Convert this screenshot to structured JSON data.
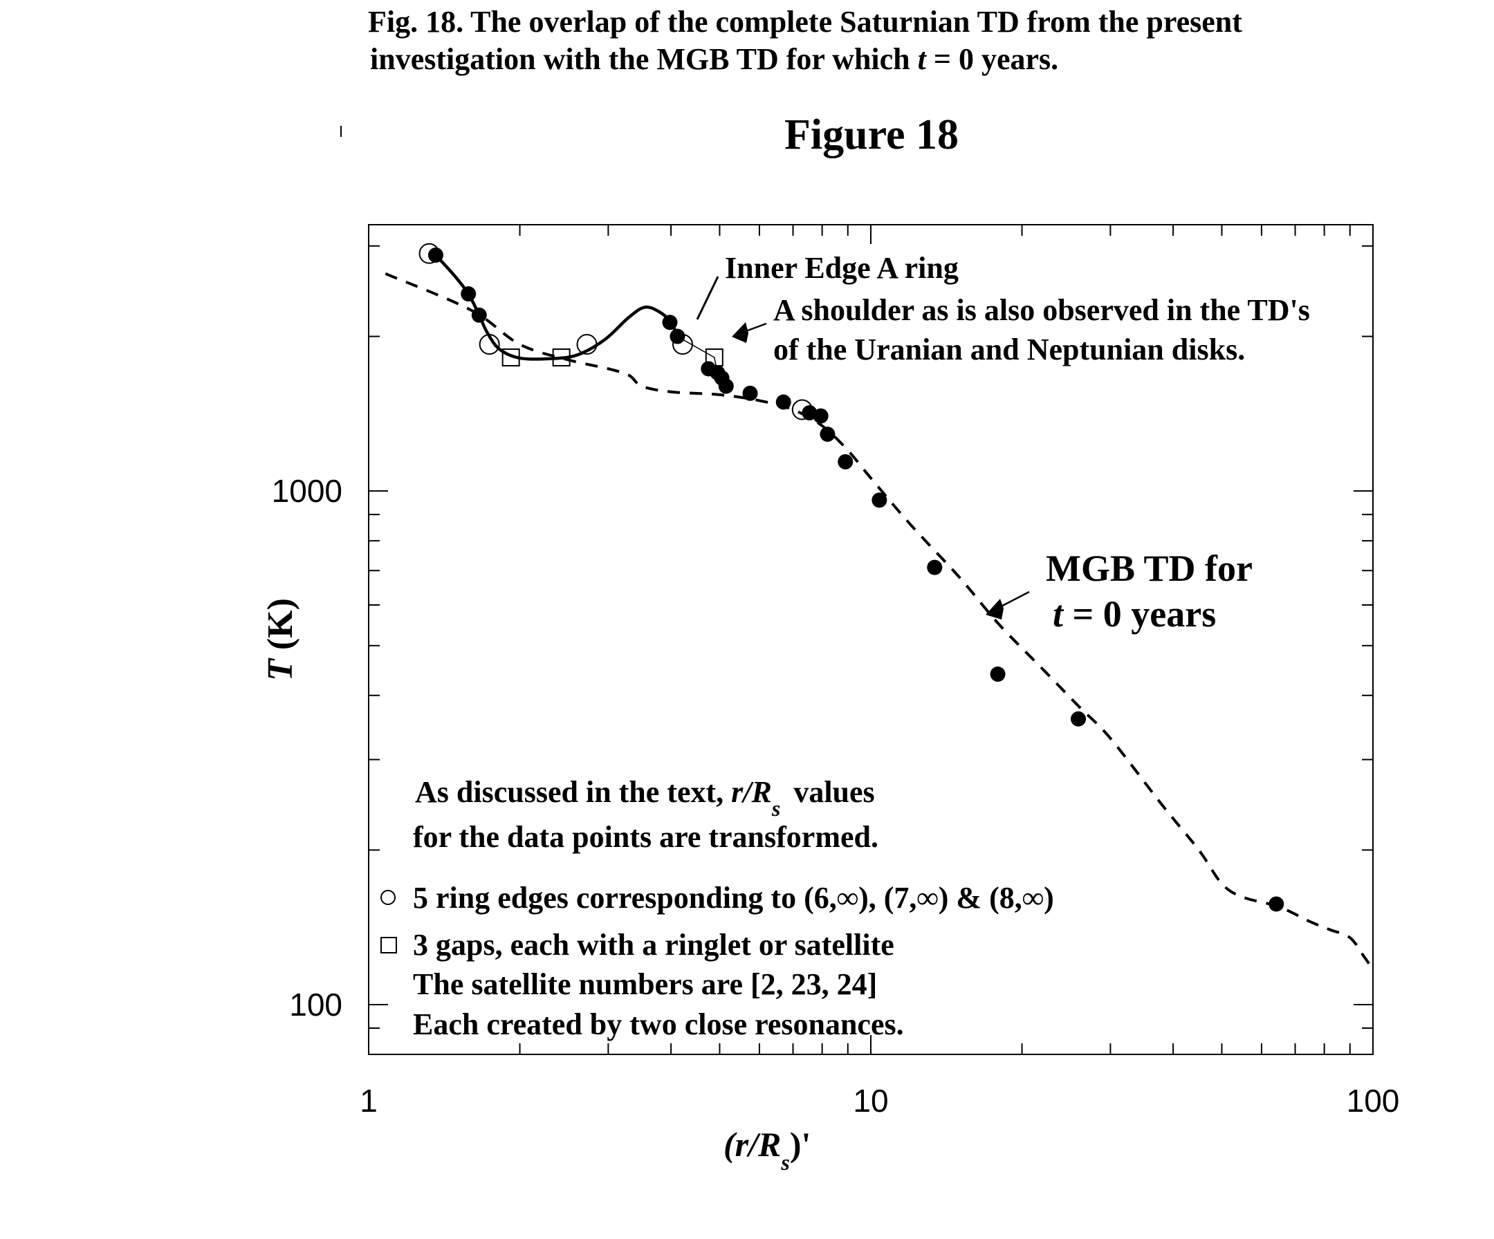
{
  "caption": {
    "label": "Fig. 18.",
    "line1_rest": "The overlap of the complete Saturnian TD from the present",
    "line2_pre": "investigation with the MGB TD for which ",
    "line2_var": "t",
    "line2_post": " = 0 years."
  },
  "chart_data": {
    "type": "scatter",
    "title": "Figure 18",
    "xlabel": {
      "main": "(r/R",
      "sub": "s",
      "tail": ")'"
    },
    "ylabel": {
      "var": "T",
      "unit": " (K)"
    },
    "x_scale": "log",
    "y_scale": "log",
    "xlim": [
      1,
      100
    ],
    "ylim": [
      80,
      3300
    ],
    "x_tick_labels": [
      {
        "value": 1,
        "label": "1"
      },
      {
        "value": 10,
        "label": "10"
      },
      {
        "value": 100,
        "label": "100"
      }
    ],
    "y_tick_labels": [
      {
        "value": 100,
        "label": "100"
      },
      {
        "value": 1000,
        "label": "1000"
      }
    ],
    "grid": false,
    "series": [
      {
        "type": "filled-circles",
        "x": [
          1.36,
          1.58,
          1.66,
          3.98,
          4.12,
          4.75,
          4.95,
          5.05,
          5.15,
          5.75,
          6.7,
          7.55,
          7.95,
          8.2,
          8.9,
          10.4,
          13.4,
          17.9,
          25.9,
          64.2
        ],
        "y": [
          2880,
          2420,
          2200,
          2130,
          2000,
          1730,
          1700,
          1660,
          1600,
          1550,
          1490,
          1420,
          1400,
          1290,
          1140,
          960,
          710,
          440,
          360,
          157
        ]
      },
      {
        "type": "open-circles",
        "x": [
          1.32,
          1.74,
          2.72,
          4.22,
          7.3
        ],
        "y": [
          2900,
          1930,
          1930,
          1930,
          1440
        ]
      },
      {
        "type": "open-squares",
        "x": [
          1.92,
          2.42,
          4.88
        ],
        "y": [
          1820,
          1820,
          1820
        ]
      },
      {
        "type": "dashed-line",
        "x": [
          1.08,
          1.6,
          2.0,
          2.5,
          3.0,
          3.3,
          3.5,
          4.0,
          5.0,
          6.0,
          7.0,
          8.0,
          9.0,
          10.0,
          12.0,
          15.0,
          18.0,
          22.0,
          26.0,
          30.0,
          38.0,
          45.0,
          50.0,
          55.0,
          65.0,
          75.0,
          82.0,
          90.0,
          96.0,
          99.5
        ],
        "y": [
          2650,
          2250,
          1930,
          1800,
          1730,
          1680,
          1600,
          1560,
          1540,
          1500,
          1440,
          1340,
          1200,
          1060,
          860,
          680,
          550,
          450,
          380,
          330,
          245,
          200,
          172,
          162,
          155,
          145,
          140,
          135,
          124,
          118
        ]
      },
      {
        "type": "solid-line",
        "x": [
          1.36,
          1.48,
          1.58,
          1.66,
          1.72,
          1.82,
          2.0,
          2.3,
          2.6,
          2.95,
          3.3,
          3.55,
          3.8,
          4.0,
          4.12
        ],
        "y": [
          2880,
          2630,
          2420,
          2200,
          2040,
          1890,
          1815,
          1810,
          1840,
          1970,
          2180,
          2280,
          2230,
          2130,
          2000
        ]
      },
      {
        "type": "thin-line",
        "x": [
          4.12,
          4.88,
          4.95,
          5.05,
          5.15
        ],
        "y": [
          2000,
          1820,
          1700,
          1660,
          1600
        ]
      }
    ],
    "annotations": {
      "inner_edge": "Inner Edge A ring",
      "shoulder_line1": "A shoulder as is also observed in the TD's",
      "shoulder_line2": "of the Uranian and Neptunian disks.",
      "mgb_line1": "MGB TD for",
      "mgb_var": "t",
      "mgb_line2_rest": " = 0 years",
      "note1_pre": "As discussed in the text, ",
      "note1_var": "r/R",
      "note1_sub": "s",
      "note1_post": " values",
      "note2": "for the data points are transformed."
    },
    "legend": {
      "placement": "bottom-left",
      "circle_entry": "5 ring edges corresponding to (6,∞), (7,∞) & (8,∞)",
      "square_entry": "3 gaps, each with a ringlet or satellite",
      "line3": "The satellite numbers are [2, 23, 24]",
      "line4": "Each created by two close resonances."
    }
  }
}
